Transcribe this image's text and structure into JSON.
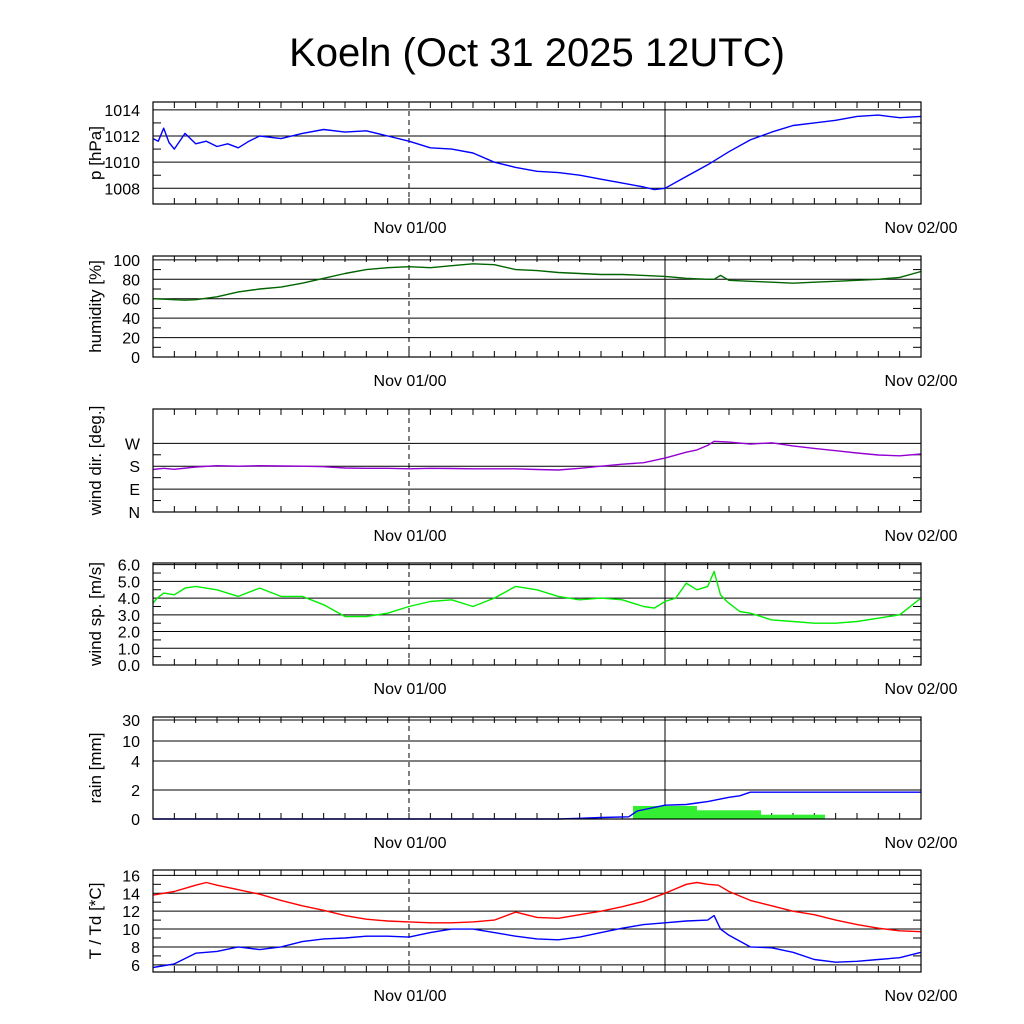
{
  "title": "Koeln (Oct 31 2025 12UTC)",
  "chart_data": [
    {
      "id": "pressure",
      "type": "line",
      "ylabel": "p [hPa]",
      "xlim": [
        0,
        36
      ],
      "ylim": [
        1006.8,
        1014.6
      ],
      "yticks": [
        1008,
        1010,
        1012,
        1014
      ],
      "ytick_labels": [
        "1008",
        "1010",
        "1012",
        "1014"
      ],
      "xtick_labels": [
        "Nov 01/00",
        "Nov 02/00"
      ],
      "series": [
        {
          "name": "pressure",
          "color": "#0000ff",
          "x": [
            0,
            0.25,
            0.5,
            0.75,
            1,
            1.5,
            2,
            2.5,
            3,
            3.5,
            4,
            4.5,
            5,
            6,
            7,
            8,
            9,
            10,
            11,
            12,
            13,
            14,
            15,
            16,
            17,
            18,
            19,
            20,
            21,
            22,
            23,
            23.5,
            24,
            25,
            26,
            27,
            28,
            29,
            30,
            31,
            32,
            33,
            34,
            35,
            36
          ],
          "y": [
            1011.8,
            1011.6,
            1012.6,
            1011.5,
            1011.0,
            1012.2,
            1011.4,
            1011.6,
            1011.2,
            1011.4,
            1011.1,
            1011.6,
            1012.0,
            1011.8,
            1012.2,
            1012.5,
            1012.3,
            1012.4,
            1012.0,
            1011.6,
            1011.1,
            1011.0,
            1010.7,
            1010.0,
            1009.6,
            1009.3,
            1009.2,
            1009.0,
            1008.7,
            1008.4,
            1008.1,
            1007.9,
            1008.0,
            1008.9,
            1009.8,
            1010.8,
            1011.7,
            1012.3,
            1012.8,
            1013.0,
            1013.2,
            1013.5,
            1013.6,
            1013.4,
            1013.5
          ]
        }
      ]
    },
    {
      "id": "humidity",
      "type": "line",
      "ylabel": "humidity [%]",
      "xlim": [
        0,
        36
      ],
      "ylim": [
        0,
        104
      ],
      "yticks": [
        0,
        20,
        40,
        60,
        80,
        100
      ],
      "ytick_labels": [
        "0",
        "20",
        "40",
        "60",
        "80",
        "100"
      ],
      "xtick_labels": [
        "Nov 01/00",
        "Nov 02/00"
      ],
      "series": [
        {
          "name": "humidity",
          "color": "#006400",
          "x": [
            0,
            0.5,
            1,
            1.5,
            2,
            3,
            4,
            5,
            6,
            7,
            8,
            9,
            10,
            11,
            12,
            13,
            14,
            15,
            16,
            17,
            18,
            19,
            20,
            21,
            22,
            23,
            24,
            25,
            26,
            26.3,
            26.6,
            27,
            28,
            29,
            30,
            31,
            32,
            33,
            34,
            35,
            36
          ],
          "y": [
            60,
            59.5,
            59,
            58.5,
            59,
            62,
            67,
            70,
            72,
            76,
            81,
            86,
            90,
            92,
            93,
            92,
            94,
            96,
            95,
            90,
            89,
            87,
            86,
            85,
            85,
            84,
            83,
            81,
            80,
            80,
            84,
            79,
            78,
            77,
            76,
            77,
            78,
            79,
            80,
            82,
            88
          ]
        }
      ]
    },
    {
      "id": "wind-direction",
      "type": "line",
      "ylabel": "wind dir. [deg.]",
      "xlim": [
        0,
        36
      ],
      "ylim": [
        0,
        405
      ],
      "yticks": [
        0,
        90,
        180,
        270
      ],
      "ytick_labels": [
        "N",
        "E",
        "S",
        "W"
      ],
      "xtick_labels": [
        "Nov 01/00",
        "Nov 02/00"
      ],
      "series": [
        {
          "name": "wind direction",
          "color": "#9400d3",
          "x": [
            0,
            0.5,
            1,
            2,
            3,
            4,
            5,
            6,
            7,
            8,
            9,
            10,
            11,
            12,
            13,
            14,
            15,
            16,
            17,
            18,
            19,
            20,
            21,
            22,
            23,
            24,
            25,
            25.5,
            26,
            26.3,
            27,
            28,
            29,
            30,
            31,
            32,
            33,
            34,
            35,
            36
          ],
          "y": [
            167,
            172,
            168,
            177,
            182,
            180,
            182,
            181,
            180,
            178,
            173,
            172,
            172,
            170,
            172,
            171,
            170,
            170,
            170,
            167,
            165,
            172,
            180,
            188,
            194,
            212,
            235,
            244,
            262,
            278,
            275,
            267,
            272,
            260,
            250,
            241,
            232,
            224,
            221,
            228
          ]
        }
      ]
    },
    {
      "id": "wind-speed",
      "type": "line",
      "ylabel": "wind sp. [m/s]",
      "xlim": [
        0,
        36
      ],
      "ylim": [
        0,
        6.1
      ],
      "yticks": [
        0,
        1,
        2,
        3,
        4,
        5,
        6
      ],
      "ytick_labels": [
        "0.0",
        "1.0",
        "2.0",
        "3.0",
        "4.0",
        "5.0",
        "6.0"
      ],
      "xtick_labels": [
        "Nov 01/00",
        "Nov 02/00"
      ],
      "series": [
        {
          "name": "wind speed",
          "color": "#00ee00",
          "x": [
            0,
            0.2,
            0.5,
            1,
            1.5,
            2,
            3,
            4,
            5,
            6,
            7,
            8,
            9,
            10,
            11,
            12,
            13,
            14,
            15,
            16,
            17,
            18,
            19,
            20,
            21,
            22,
            23,
            23.5,
            24,
            24.5,
            25,
            25.5,
            26,
            26.3,
            26.6,
            26.9,
            27.1,
            27.5,
            28,
            29,
            30,
            31,
            32,
            33,
            34,
            35,
            36
          ],
          "y": [
            3.7,
            4.0,
            4.3,
            4.2,
            4.6,
            4.7,
            4.5,
            4.1,
            4.6,
            4.1,
            4.1,
            3.6,
            2.9,
            2.9,
            3.1,
            3.5,
            3.8,
            3.9,
            3.5,
            4.0,
            4.7,
            4.5,
            4.1,
            3.9,
            4.0,
            3.9,
            3.5,
            3.4,
            3.8,
            4.0,
            4.9,
            4.5,
            4.7,
            5.6,
            4.2,
            3.8,
            3.6,
            3.2,
            3.1,
            2.7,
            2.6,
            2.5,
            2.5,
            2.6,
            2.8,
            3.0,
            4.0
          ]
        }
      ]
    },
    {
      "id": "rain",
      "type": "bar+line",
      "ylabel": "rain [mm]",
      "xlim": [
        0,
        36
      ],
      "yticks": [
        0,
        2,
        4,
        10,
        30
      ],
      "ytick_labels": [
        "0",
        "2",
        "4",
        "10",
        "30"
      ],
      "xtick_labels": [
        "Nov 01/00",
        "Nov 02/00"
      ],
      "bars": {
        "name": "precipitation",
        "color": "#33ee33",
        "intervals": [
          {
            "x0": 22.5,
            "x1": 25.5,
            "value": 0.9
          },
          {
            "x0": 25.5,
            "x1": 28.5,
            "value": 0.6
          },
          {
            "x0": 28.5,
            "x1": 31.5,
            "value": 0.3
          }
        ]
      },
      "series": [
        {
          "name": "accumulated",
          "color": "#0000ff",
          "x": [
            0,
            19,
            20,
            21,
            22.3,
            22.7,
            24,
            25,
            25.5,
            26,
            27,
            27.5,
            28,
            30,
            36
          ],
          "y": [
            0,
            0,
            0.05,
            0.1,
            0.15,
            0.55,
            0.95,
            1.0,
            1.1,
            1.2,
            1.5,
            1.6,
            1.85,
            1.85,
            1.85
          ]
        }
      ]
    },
    {
      "id": "temperature",
      "type": "line",
      "ylabel": "T / Td [*C]",
      "xlim": [
        0,
        36
      ],
      "ylim": [
        5.2,
        16.6
      ],
      "yticks": [
        6,
        8,
        10,
        12,
        14,
        16
      ],
      "ytick_labels": [
        "6",
        "8",
        "10",
        "12",
        "14",
        "16"
      ],
      "xtick_labels": [
        "Nov 01/00",
        "Nov 02/00"
      ],
      "series": [
        {
          "name": "T",
          "color": "#ff0000",
          "x": [
            0,
            1,
            2,
            2.5,
            3,
            4,
            5,
            6,
            7,
            8,
            9,
            10,
            11,
            12,
            13,
            14,
            15,
            16,
            17,
            18,
            19,
            20,
            21,
            22,
            23,
            24,
            25,
            25.5,
            26,
            26.5,
            27,
            28,
            29,
            30,
            31,
            32,
            33,
            34,
            35,
            36
          ],
          "y": [
            13.8,
            14.2,
            14.9,
            15.2,
            14.9,
            14.4,
            13.9,
            13.2,
            12.6,
            12.1,
            11.5,
            11.1,
            10.9,
            10.8,
            10.7,
            10.7,
            10.8,
            11.0,
            11.9,
            11.3,
            11.2,
            11.6,
            12.0,
            12.5,
            13.1,
            14.0,
            15.0,
            15.2,
            15.0,
            14.9,
            14.2,
            13.2,
            12.6,
            12.0,
            11.6,
            11.0,
            10.5,
            10.1,
            9.8,
            9.7
          ]
        },
        {
          "name": "Td",
          "color": "#0000ff",
          "x": [
            0,
            1,
            2,
            3,
            4,
            5,
            6,
            7,
            8,
            9,
            10,
            11,
            12,
            13,
            14,
            15,
            16,
            17,
            18,
            19,
            20,
            21,
            22,
            23,
            24,
            25,
            26,
            26.3,
            26.6,
            27,
            28,
            29,
            30,
            31,
            32,
            33,
            34,
            35,
            36
          ],
          "y": [
            5.7,
            6.1,
            7.3,
            7.5,
            8.0,
            7.7,
            8.0,
            8.6,
            8.9,
            9.0,
            9.2,
            9.2,
            9.1,
            9.6,
            10.0,
            10.0,
            9.6,
            9.2,
            8.9,
            8.8,
            9.1,
            9.6,
            10.1,
            10.5,
            10.7,
            10.9,
            11.0,
            11.5,
            10.0,
            9.3,
            8.0,
            7.9,
            7.4,
            6.6,
            6.3,
            6.4,
            6.6,
            6.8,
            7.4
          ]
        }
      ]
    }
  ]
}
